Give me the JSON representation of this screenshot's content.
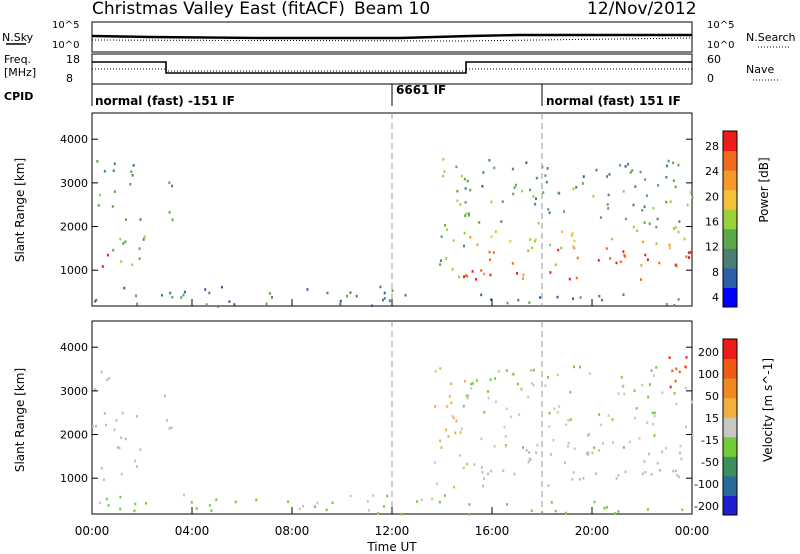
{
  "header": {
    "title": "Christmas Valley East (fitACF)",
    "beam": "Beam 10",
    "date": "12/Nov/2012"
  },
  "status_panels": {
    "nsky_label": "N.Sky",
    "nsearch_label": "N.Search",
    "nsky_ticks": [
      "10^5",
      "10^0"
    ],
    "nsearch_ticks": [
      "10^5",
      "10^0"
    ],
    "freq_label_1": "Freq.",
    "freq_label_2": "[MHz]",
    "freq_ticks": [
      "18",
      "8"
    ],
    "nave_label": "Nave",
    "nave_ticks": [
      "60",
      "0"
    ],
    "cpid_label": "CPID",
    "cpid_segments": [
      {
        "label": "normal (fast) -151 IF",
        "start_hour": 0
      },
      {
        "label": "6661 IF",
        "start_hour": 12
      },
      {
        "label": "normal (fast) 151 IF",
        "start_hour": 18
      }
    ]
  },
  "colors": {
    "power_scale": [
      "#0000ff",
      "#2b5fa8",
      "#4b7f74",
      "#5aa84a",
      "#9bd13a",
      "#f3c23a",
      "#f59a2a",
      "#f26a1e",
      "#ee1b1b"
    ],
    "velocity_scale": [
      "#1f1fd0",
      "#2a6a9a",
      "#3e8f5e",
      "#72cc3a",
      "#c8c8c0",
      "#f2b040",
      "#f08a20",
      "#f05a14",
      "#ee1b1b"
    ],
    "ground_scatter": "#bdbdb5"
  },
  "chart_data": [
    {
      "type": "heatmap",
      "name": "power",
      "xlabel": "Time UT",
      "ylabel": "Slant Range [km]",
      "x_tick_labels": [
        "00:00",
        "04:00",
        "08:00",
        "12:00",
        "16:00",
        "20:00",
        "00:00"
      ],
      "x_ticks_hours": [
        0,
        4,
        8,
        12,
        16,
        20,
        24
      ],
      "xlim_hours": [
        0,
        24
      ],
      "ylim_km": [
        180,
        4600
      ],
      "y_ticks": [
        1000,
        2000,
        3000,
        4000
      ],
      "y_tick_labels": [
        "1000",
        "2000",
        "3000",
        "4000"
      ],
      "colorbar_label": "Power [dB]",
      "colorbar_ticks": [
        "28",
        "24",
        "20",
        "16",
        "12",
        "8",
        "4"
      ],
      "colorbar_range": [
        0,
        30
      ],
      "dashed_vertical_hours": [
        12,
        18
      ],
      "regions": [
        {
          "t0": 0.0,
          "t1": 0.6,
          "r0": 900,
          "r1": 1600,
          "level": 26
        },
        {
          "t0": 0.0,
          "t1": 1.0,
          "r0": 2200,
          "r1": 3700,
          "level": 11
        },
        {
          "t0": 0.8,
          "t1": 2.1,
          "r0": 1000,
          "r1": 2700,
          "level": 13
        },
        {
          "t0": 1.2,
          "t1": 1.9,
          "r0": 2800,
          "r1": 3700,
          "level": 9
        },
        {
          "t0": 2.8,
          "t1": 3.2,
          "r0": 1800,
          "r1": 3700,
          "level": 12
        },
        {
          "t0": 0.0,
          "t1": 14.5,
          "r0": 200,
          "r1": 650,
          "level": 8
        },
        {
          "t0": 13.6,
          "t1": 15.0,
          "r0": 800,
          "r1": 3700,
          "level": 13
        },
        {
          "t0": 14.8,
          "t1": 24.0,
          "r0": 800,
          "r1": 1600,
          "level": 26
        },
        {
          "t0": 14.8,
          "t1": 24.0,
          "r0": 1500,
          "r1": 2000,
          "level": 17
        },
        {
          "t0": 14.8,
          "t1": 24.0,
          "r0": 2000,
          "r1": 2900,
          "level": 12
        },
        {
          "t0": 14.8,
          "t1": 24.0,
          "r0": 2900,
          "r1": 3600,
          "level": 9
        },
        {
          "t0": 15.0,
          "t1": 24.0,
          "r0": 200,
          "r1": 500,
          "level": 10
        }
      ]
    },
    {
      "type": "heatmap",
      "name": "velocity",
      "xlabel": "Time UT",
      "ylabel": "Slant Range [km]",
      "x_tick_labels": [
        "00:00",
        "04:00",
        "08:00",
        "12:00",
        "16:00",
        "20:00",
        "00:00"
      ],
      "x_ticks_hours": [
        0,
        4,
        8,
        12,
        16,
        20,
        24
      ],
      "xlim_hours": [
        0,
        24
      ],
      "ylim_km": [
        180,
        4600
      ],
      "y_ticks": [
        1000,
        2000,
        3000,
        4000
      ],
      "y_tick_labels": [
        "1000",
        "2000",
        "3000",
        "4000"
      ],
      "colorbar_label": "Velocity [m s^-1]",
      "colorbar_ticks": [
        "200",
        "100",
        "50",
        "15",
        "-15",
        "-50",
        "-100",
        "-200"
      ],
      "colorbar_range": [
        -250,
        250
      ],
      "dashed_vertical_hours": [
        12,
        18
      ],
      "regions": [
        {
          "t0": 0.0,
          "t1": 0.6,
          "r0": 900,
          "r1": 1600,
          "level": 0,
          "ground": true
        },
        {
          "t0": 0.0,
          "t1": 1.0,
          "r0": 2200,
          "r1": 3700,
          "level": 0,
          "ground": true
        },
        {
          "t0": 0.8,
          "t1": 2.1,
          "r0": 1000,
          "r1": 2700,
          "level": 0,
          "ground": true
        },
        {
          "t0": 2.8,
          "t1": 3.2,
          "r0": 1800,
          "r1": 3700,
          "level": 0,
          "ground": true
        },
        {
          "t0": 0.0,
          "t1": 14.5,
          "r0": 200,
          "r1": 650,
          "level": -40
        },
        {
          "t0": 13.6,
          "t1": 15.0,
          "r0": 800,
          "r1": 3700,
          "level": 30
        },
        {
          "t0": 14.8,
          "t1": 24.0,
          "r0": 800,
          "r1": 1700,
          "level": 0,
          "ground": true
        },
        {
          "t0": 14.8,
          "t1": 24.0,
          "r0": 1700,
          "r1": 3600,
          "level": -20
        },
        {
          "t0": 22.5,
          "t1": 24.0,
          "r0": 2800,
          "r1": 3900,
          "level": 180
        },
        {
          "t0": 15.0,
          "t1": 24.0,
          "r0": 200,
          "r1": 500,
          "level": -60
        }
      ]
    }
  ]
}
